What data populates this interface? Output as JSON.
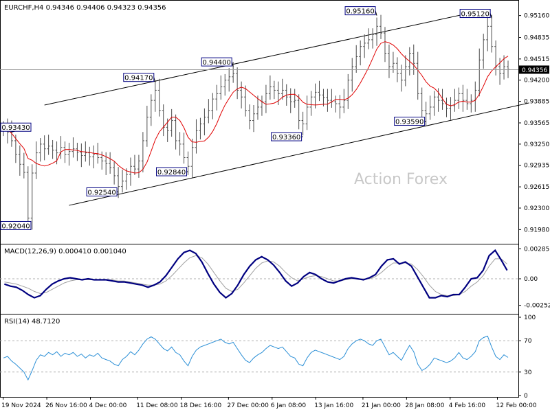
{
  "chart_data": {
    "type": "candlestick",
    "symbol_info": "EURCHF,H4 0.94346 0.94406 0.94323 0.94356",
    "watermark": "Action Forex",
    "colors": {
      "price": "#4a4a4a",
      "ma": "#e00000",
      "channel": "#000000",
      "macd": "#000080",
      "signal": "#a0a0a0",
      "rsi": "#2b8fd6",
      "axis": "#000000",
      "current_bg": "#000000"
    },
    "price_panel": {
      "ylim": [
        0.918,
        0.9535
      ],
      "ticks": [
        "0.95160",
        "0.94835",
        "0.94515",
        "0.94200",
        "0.93885",
        "0.93565",
        "0.93250",
        "0.92935",
        "0.92615",
        "0.92300",
        "0.91980"
      ],
      "current_price": "0.94356",
      "pivots": [
        {
          "label": "0.93430",
          "i": 2,
          "y": 0.9343,
          "side": "hi"
        },
        {
          "label": "0.92040",
          "i": 6,
          "y": 0.9204,
          "side": "lo"
        },
        {
          "label": "0.92540",
          "i": 28,
          "y": 0.9254,
          "side": "lo"
        },
        {
          "label": "0.94170",
          "i": 37,
          "y": 0.9417,
          "side": "hi"
        },
        {
          "label": "0.92840",
          "i": 45,
          "y": 0.9284,
          "side": "lo"
        },
        {
          "label": "0.94400",
          "i": 56,
          "y": 0.944,
          "side": "hi"
        },
        {
          "label": "0.93360",
          "i": 73,
          "y": 0.9336,
          "side": "lo"
        },
        {
          "label": "0.95160",
          "i": 91,
          "y": 0.9516,
          "side": "hi"
        },
        {
          "label": "0.93590",
          "i": 103,
          "y": 0.9359,
          "side": "lo"
        },
        {
          "label": "0.95120",
          "i": 119,
          "y": 0.9512,
          "side": "hi"
        }
      ],
      "channel_upper": [
        [
          10,
          0.9383
        ],
        [
          117,
          0.9524
        ]
      ],
      "channel_lower": [
        [
          16,
          0.9234
        ],
        [
          128,
          0.9386
        ]
      ],
      "close": [
        0.935,
        0.9343,
        0.933,
        0.931,
        0.9295,
        0.9283,
        0.9215,
        0.9282,
        0.9312,
        0.9325,
        0.9318,
        0.9322,
        0.9316,
        0.9312,
        0.932,
        0.931,
        0.9314,
        0.9318,
        0.9313,
        0.9308,
        0.9312,
        0.9306,
        0.931,
        0.9305,
        0.93,
        0.9296,
        0.929,
        0.9278,
        0.9262,
        0.927,
        0.928,
        0.9292,
        0.9288,
        0.93,
        0.933,
        0.9365,
        0.939,
        0.9405,
        0.9375,
        0.935,
        0.9345,
        0.936,
        0.933,
        0.9325,
        0.9305,
        0.9292,
        0.932,
        0.9345,
        0.9355,
        0.9365,
        0.9375,
        0.9392,
        0.94,
        0.941,
        0.942,
        0.9425,
        0.943,
        0.9405,
        0.9395,
        0.9375,
        0.936,
        0.937,
        0.938,
        0.9388,
        0.94,
        0.941,
        0.9405,
        0.94,
        0.9405,
        0.9395,
        0.9388,
        0.939,
        0.936,
        0.9355,
        0.938,
        0.9395,
        0.9402,
        0.9398,
        0.9394,
        0.939,
        0.9388,
        0.9385,
        0.938,
        0.939,
        0.942,
        0.944,
        0.9455,
        0.947,
        0.9475,
        0.948,
        0.9488,
        0.95,
        0.949,
        0.946,
        0.944,
        0.9445,
        0.943,
        0.942,
        0.944,
        0.946,
        0.9445,
        0.94,
        0.9375,
        0.937,
        0.938,
        0.9395,
        0.939,
        0.9385,
        0.9378,
        0.9382,
        0.939,
        0.94,
        0.939,
        0.9385,
        0.939,
        0.9405,
        0.945,
        0.948,
        0.95,
        0.947,
        0.944,
        0.943,
        0.944,
        0.9436
      ]
    },
    "macd_panel": {
      "title": "MACD(12,26,9) 0.000410 0.001040",
      "ylim": [
        -0.003,
        0.003
      ],
      "ticks": [
        "0.00285",
        "0.00",
        "-0.002521"
      ],
      "macd": [
        -0.0005,
        -0.0007,
        -0.0008,
        -0.0011,
        -0.0015,
        -0.0018,
        -0.0016,
        -0.001,
        -0.0005,
        -0.0002,
        0.0,
        0.0001,
        0.0,
        -0.0001,
        0.0,
        -0.0001,
        -0.0001,
        -0.0001,
        -0.0002,
        -0.0003,
        -0.0003,
        -0.0004,
        -0.0005,
        -0.0006,
        -0.0008,
        -0.0006,
        -0.0003,
        0.0003,
        0.0011,
        0.0019,
        0.0025,
        0.0027,
        0.0024,
        0.0016,
        0.0005,
        -0.0005,
        -0.0013,
        -0.0018,
        -0.0014,
        -0.0006,
        0.0004,
        0.0012,
        0.0018,
        0.0021,
        0.0018,
        0.0013,
        0.0006,
        -0.0002,
        -0.0007,
        -0.0004,
        0.0002,
        0.0006,
        0.0004,
        0.0,
        -0.0003,
        -0.0004,
        -0.0002,
        0.0,
        0.0001,
        0.0,
        -0.0001,
        0.0001,
        0.0004,
        0.0012,
        0.0018,
        0.0019,
        0.0014,
        0.0016,
        0.0012,
        0.0002,
        -0.0008,
        -0.0018,
        -0.0018,
        -0.0016,
        -0.0017,
        -0.0015,
        -0.0015,
        -0.0008,
        0.0,
        0.0001,
        0.0008,
        0.0022,
        0.0027,
        0.0018,
        0.0008
      ],
      "signal": [
        -0.0003,
        -0.0004,
        -0.0005,
        -0.0007,
        -0.0009,
        -0.0012,
        -0.0014,
        -0.0013,
        -0.001,
        -0.0007,
        -0.0004,
        -0.0002,
        -0.0001,
        -0.0001,
        -0.0001,
        -0.0001,
        -0.0001,
        -0.0001,
        -0.0001,
        -0.0002,
        -0.0002,
        -0.0003,
        -0.0004,
        -0.0005,
        -0.0006,
        -0.0006,
        -0.0005,
        -0.0002,
        0.0003,
        0.0009,
        0.0015,
        0.002,
        0.0022,
        0.002,
        0.0014,
        0.0006,
        -0.0002,
        -0.0009,
        -0.0012,
        -0.001,
        -0.0004,
        0.0003,
        0.001,
        0.0015,
        0.0017,
        0.0016,
        0.0012,
        0.0006,
        0.0001,
        -0.0002,
        0.0,
        0.0002,
        0.0003,
        0.0002,
        0.0,
        -0.0002,
        -0.0002,
        -0.0001,
        0.0,
        0.0,
        0.0,
        0.0,
        0.0002,
        0.0006,
        0.0011,
        0.0015,
        0.0015,
        0.0015,
        0.0014,
        0.0009,
        0.0002,
        -0.0006,
        -0.0012,
        -0.0015,
        -0.0016,
        -0.0016,
        -0.0015,
        -0.0012,
        -0.0007,
        -0.0003,
        0.0003,
        0.0012,
        0.0019,
        0.0019,
        0.0014
      ]
    },
    "rsi_panel": {
      "title": "RSI(14) 48.7120",
      "ylim": [
        0,
        100
      ],
      "ticks": [
        "100",
        "70",
        "30",
        "0"
      ],
      "levels": [
        70,
        30
      ],
      "rsi": [
        48,
        50,
        44,
        40,
        35,
        30,
        20,
        32,
        45,
        52,
        50,
        55,
        52,
        56,
        50,
        54,
        52,
        55,
        50,
        53,
        48,
        52,
        50,
        54,
        48,
        46,
        44,
        40,
        38,
        46,
        50,
        56,
        52,
        58,
        66,
        72,
        75,
        72,
        66,
        60,
        57,
        62,
        55,
        52,
        44,
        38,
        50,
        58,
        62,
        64,
        66,
        68,
        70,
        72,
        68,
        66,
        68,
        60,
        52,
        45,
        42,
        48,
        52,
        55,
        60,
        64,
        62,
        60,
        62,
        56,
        50,
        48,
        40,
        38,
        48,
        55,
        58,
        56,
        54,
        52,
        50,
        48,
        46,
        50,
        60,
        66,
        70,
        72,
        70,
        66,
        64,
        70,
        72,
        62,
        52,
        55,
        50,
        45,
        55,
        64,
        56,
        40,
        32,
        35,
        40,
        48,
        46,
        44,
        42,
        44,
        48,
        55,
        48,
        46,
        50,
        56,
        70,
        74,
        76,
        62,
        50,
        46,
        52,
        48.7
      ]
    },
    "x_tick_labels": [
      {
        "label": "19 Nov 2024",
        "i": 0
      },
      {
        "label": "26 Nov 16:00",
        "i": 12
      },
      {
        "label": "4 Dec 00:00",
        "i": 24
      },
      {
        "label": "11 Dec 08:00",
        "i": 37
      },
      {
        "label": "18 Dec 16:00",
        "i": 49
      },
      {
        "label": "27 Dec 00:00",
        "i": 62
      },
      {
        "label": "6 Jan 08:00",
        "i": 74
      },
      {
        "label": "13 Jan 16:00",
        "i": 86
      },
      {
        "label": "21 Jan 00:00",
        "i": 99
      },
      {
        "label": "28 Jan 08:00",
        "i": 111
      },
      {
        "label": "4 Feb 16:00",
        "i": 123
      },
      {
        "label": "12 Feb 00:00",
        "i": 136
      }
    ]
  }
}
